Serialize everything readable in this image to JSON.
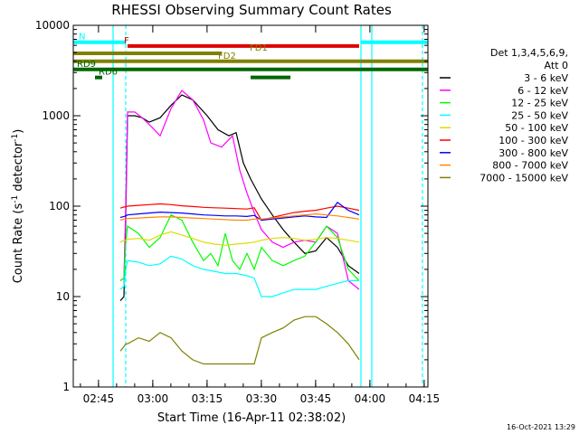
{
  "chart_data": {
    "type": "line",
    "title": "RHESSI Observing Summary Count Rates",
    "xlabel": "Start Time (16-Apr-11 02:38:02)",
    "ylabel_main": "Count Rate (s",
    "ylabel_sup1": "-1",
    "ylabel_mid": " detector",
    "ylabel_sup2": "-1",
    "ylabel_end": ")",
    "ylog": true,
    "ylim": [
      1,
      10000
    ],
    "xlim_minutes": [
      0,
      98
    ],
    "x_ticks": [
      "02:45",
      "03:00",
      "03:15",
      "03:30",
      "03:45",
      "04:00",
      "04:15"
    ],
    "x_tick_minutes": [
      6.97,
      21.97,
      36.97,
      51.97,
      66.97,
      81.97,
      96.97
    ],
    "y_ticks": [
      "1",
      "10",
      "100",
      "1000",
      "10000"
    ],
    "y_tick_values": [
      1,
      10,
      100,
      1000,
      10000
    ],
    "legend_position": "right",
    "legend_header": [
      "Det 1,3,4,5,6,9,",
      "Att 0"
    ],
    "series": [
      {
        "name": "3 - 6 keV",
        "color": "#000000",
        "x": [
          13,
          14,
          14.5,
          15,
          17,
          19,
          21,
          24,
          27,
          30,
          33,
          37,
          40,
          43,
          45,
          47,
          49,
          52,
          55,
          58,
          61,
          64,
          67,
          70,
          73,
          76,
          79
        ],
        "y": [
          9,
          10,
          80,
          1000,
          1000,
          950,
          850,
          950,
          1300,
          1700,
          1500,
          1000,
          700,
          600,
          650,
          300,
          200,
          120,
          80,
          55,
          40,
          30,
          32,
          45,
          35,
          22,
          18
        ]
      },
      {
        "name": "6 - 12 keV",
        "color": "#ff00ff",
        "x": [
          13,
          14,
          14.5,
          15,
          17,
          19,
          21,
          24,
          27,
          30,
          33,
          36,
          38,
          41,
          44,
          46,
          48,
          50,
          52,
          55,
          58,
          61,
          64,
          67,
          70,
          73,
          76,
          79
        ],
        "y": [
          15,
          16,
          100,
          1100,
          1100,
          950,
          800,
          600,
          1200,
          1900,
          1500,
          900,
          500,
          450,
          600,
          250,
          140,
          85,
          55,
          40,
          35,
          40,
          42,
          40,
          60,
          50,
          15,
          12
        ]
      },
      {
        "name": "12 - 25 keV",
        "color": "#00ff00",
        "x": [
          13,
          14,
          14.5,
          15,
          18,
          21,
          24,
          27,
          30,
          33,
          36,
          38,
          40,
          42,
          44,
          46,
          48,
          50,
          52,
          55,
          58,
          61,
          64,
          67,
          70,
          73,
          76,
          79
        ],
        "y": [
          15,
          16,
          40,
          60,
          50,
          35,
          45,
          80,
          70,
          40,
          25,
          30,
          22,
          50,
          25,
          20,
          30,
          20,
          35,
          25,
          22,
          25,
          28,
          40,
          60,
          45,
          20,
          15
        ]
      },
      {
        "name": "25 - 50 keV",
        "color": "#00ffff",
        "x": [
          13,
          14,
          14.5,
          15,
          18,
          21,
          24,
          27,
          30,
          33,
          36,
          39,
          42,
          45,
          48,
          50,
          52,
          55,
          58,
          61,
          64,
          67,
          70,
          73,
          76,
          79
        ],
        "y": [
          12,
          13,
          20,
          25,
          24,
          22,
          23,
          28,
          26,
          22,
          20,
          19,
          18,
          18,
          17,
          16,
          10,
          10,
          11,
          12,
          12,
          12,
          13,
          14,
          15,
          15
        ]
      },
      {
        "name": "50 - 100 keV",
        "color": "#dddd00",
        "x": [
          13,
          14,
          14.5,
          15,
          18,
          21,
          24,
          27,
          30,
          33,
          36,
          39,
          42,
          45,
          48,
          50,
          52,
          55,
          58,
          61,
          64,
          67,
          70,
          73,
          76,
          79
        ],
        "y": [
          40,
          42,
          42,
          43,
          44,
          42,
          48,
          52,
          48,
          44,
          40,
          38,
          37,
          38,
          39,
          40,
          42,
          44,
          45,
          44,
          42,
          43,
          45,
          44,
          42,
          40
        ]
      },
      {
        "name": "100 - 300 keV",
        "color": "#ff0000",
        "x": [
          13,
          14,
          14.5,
          15,
          18,
          21,
          24,
          27,
          30,
          33,
          36,
          39,
          42,
          45,
          48,
          50,
          52,
          55,
          58,
          61,
          64,
          67,
          70,
          73,
          76,
          79
        ],
        "y": [
          95,
          98,
          98,
          100,
          102,
          104,
          106,
          104,
          101,
          99,
          97,
          96,
          95,
          94,
          93,
          96,
          70,
          75,
          80,
          85,
          88,
          90,
          95,
          100,
          95,
          90
        ]
      },
      {
        "name": "300 - 800 keV",
        "color": "#0000ff",
        "x": [
          13,
          14,
          14.5,
          15,
          18,
          21,
          24,
          27,
          30,
          33,
          36,
          39,
          42,
          45,
          48,
          50,
          52,
          55,
          58,
          61,
          64,
          67,
          70,
          73,
          76,
          79
        ],
        "y": [
          75,
          77,
          78,
          80,
          82,
          84,
          86,
          85,
          84,
          82,
          80,
          79,
          78,
          78,
          77,
          79,
          70,
          72,
          74,
          76,
          78,
          76,
          75,
          110,
          90,
          80
        ]
      },
      {
        "name": "800 - 7000 keV",
        "color": "#ff8800",
        "x": [
          13,
          14,
          14.5,
          15,
          18,
          21,
          24,
          27,
          30,
          33,
          36,
          39,
          42,
          45,
          48,
          50,
          52,
          55,
          58,
          61,
          64,
          67,
          70,
          73,
          76,
          79
        ],
        "y": [
          70,
          72,
          72,
          73,
          74,
          75,
          76,
          76,
          75,
          74,
          73,
          72,
          71,
          70,
          70,
          72,
          72,
          74,
          76,
          78,
          80,
          82,
          80,
          78,
          75,
          72
        ]
      },
      {
        "name": "7000 - 15000 keV",
        "color": "#808000",
        "x": [
          13,
          14,
          14.5,
          15,
          18,
          21,
          24,
          27,
          30,
          33,
          36,
          39,
          42,
          45,
          48,
          50,
          52,
          55,
          58,
          61,
          64,
          67,
          70,
          73,
          76,
          79
        ],
        "y": [
          2.5,
          2.8,
          3,
          3,
          3.5,
          3.2,
          4,
          3.5,
          2.5,
          2,
          1.8,
          1.8,
          1.8,
          1.8,
          1.8,
          1.8,
          3.5,
          4,
          4.5,
          5.5,
          6,
          6,
          5,
          4,
          3,
          2
        ]
      }
    ],
    "flag_bars": [
      {
        "label": "N",
        "color": "#00ffff",
        "value": 6500,
        "segments": [
          [
            0,
            14.5
          ],
          [
            79.5,
            98
          ]
        ]
      },
      {
        "label": "F",
        "color": "#dd0000",
        "value": 5900,
        "segments": [
          [
            15,
            79
          ]
        ]
      },
      {
        "label": "FD1",
        "color": "#808000",
        "value": 4900,
        "segments": [
          [
            0,
            41
          ]
        ]
      },
      {
        "label": "FD2",
        "color": "#808000",
        "value": 4000,
        "segments": [
          [
            0,
            98
          ]
        ]
      },
      {
        "label": "RD6",
        "color": "#006600",
        "value": 2650,
        "segments": [
          [
            6,
            8
          ],
          [
            49,
            60
          ]
        ]
      },
      {
        "label": "RD9",
        "color": "#006600",
        "value": 3250,
        "segments": [
          [
            0,
            98
          ]
        ]
      }
    ],
    "vlines": [
      {
        "color": "#00ffff",
        "x": 11,
        "dashed": false
      },
      {
        "color": "#00ffff",
        "x": 14.5,
        "dashed": true
      },
      {
        "color": "#00ffff",
        "x": 79.5,
        "dashed": false
      },
      {
        "color": "#00ffff",
        "x": 82.5,
        "dashed": false
      },
      {
        "color": "#00ffff",
        "x": 96.5,
        "dashed": true
      }
    ]
  },
  "footer_date": "16-Oct-2021 13:29"
}
